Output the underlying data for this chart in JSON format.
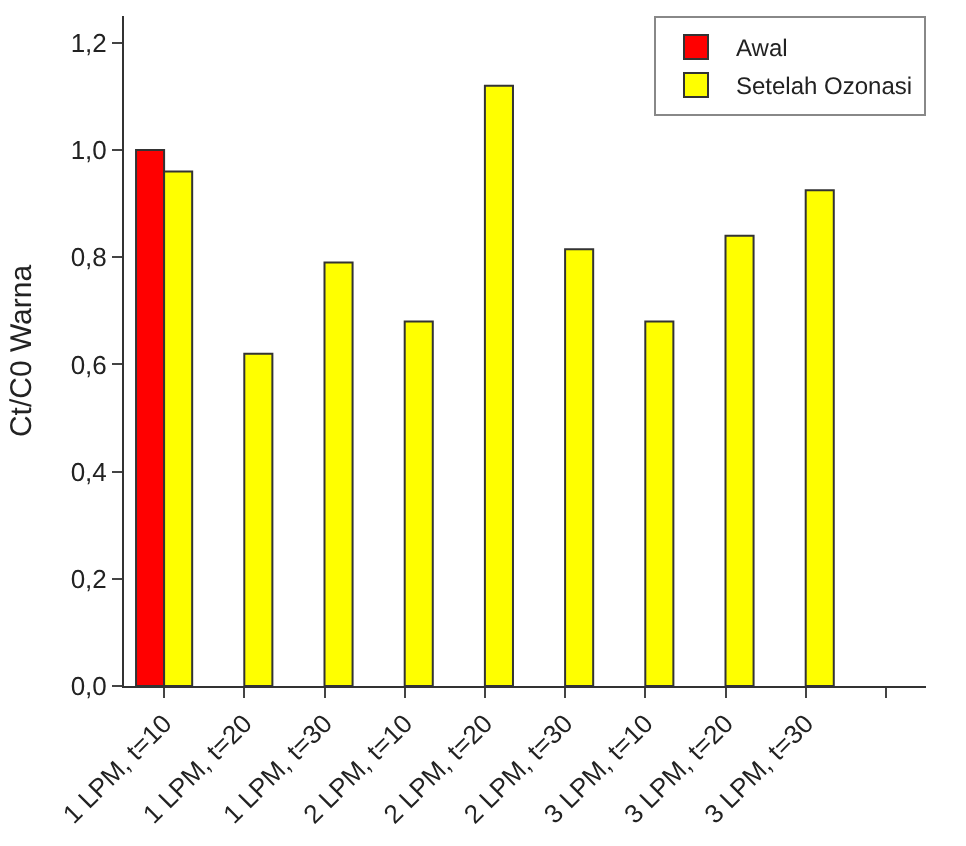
{
  "chart_data": {
    "type": "bar",
    "ylabel": "Ct/C0 Warna",
    "categories": [
      "1 LPM, t=10",
      "1 LPM, t=20",
      "1 LPM, t=30",
      "2 LPM, t=10",
      "2 LPM, t=20",
      "2 LPM, t=30",
      "3 LPM, t=10",
      "3 LPM, t=20",
      "3 LPM, t=30",
      null
    ],
    "series": [
      {
        "name": "Awal",
        "color": "#ff0000",
        "values": [
          1.0,
          null,
          null,
          null,
          null,
          null,
          null,
          null,
          null,
          null
        ]
      },
      {
        "name": "Setelah Ozonasi",
        "color": "#ffff00",
        "values": [
          0.96,
          0.62,
          0.79,
          0.68,
          1.12,
          0.815,
          0.68,
          0.84,
          0.925,
          null
        ]
      }
    ],
    "ylim": [
      0,
      1.25
    ],
    "yticks": [
      {
        "value": 0,
        "label": "0,0"
      },
      {
        "value": 0.2,
        "label": "0,2"
      },
      {
        "value": 0.4,
        "label": "0,4"
      },
      {
        "value": 0.6,
        "label": "0,6"
      },
      {
        "value": 0.8,
        "label": "0,8"
      },
      {
        "value": 1.0,
        "label": "1,0"
      },
      {
        "value": 1.2,
        "label": "1,2"
      }
    ],
    "legend": "top right"
  }
}
